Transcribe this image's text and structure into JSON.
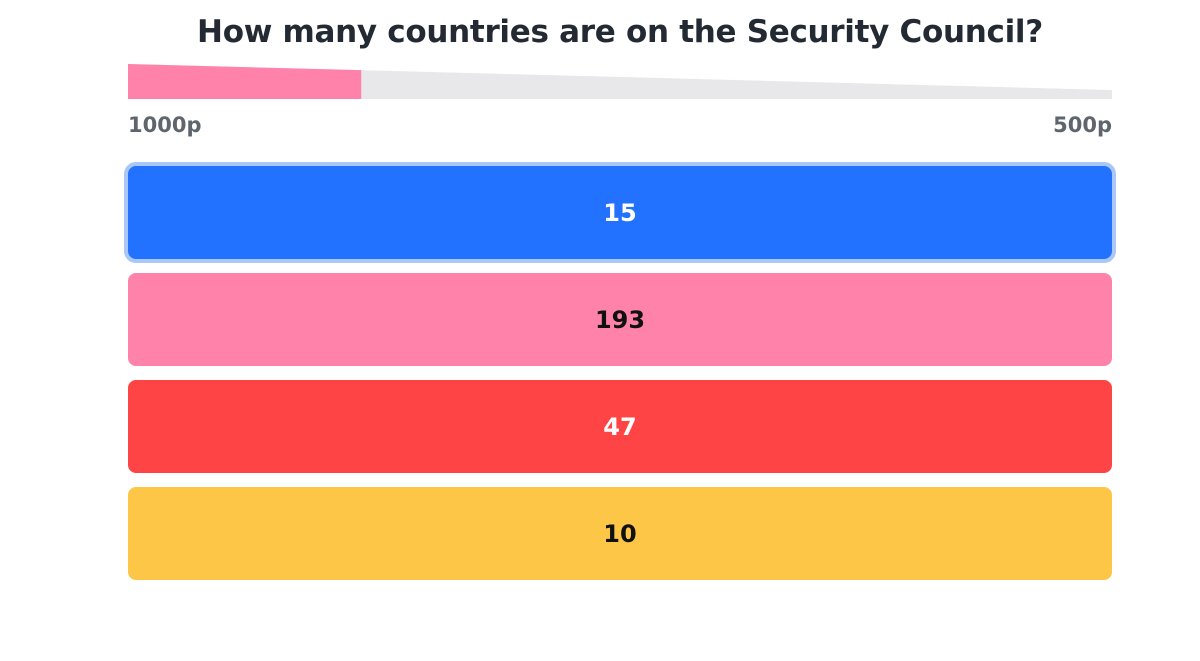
{
  "question": {
    "text": "How many countries are on the Security Council?"
  },
  "timer": {
    "max_points_label": "1000p",
    "min_points_label": "500p",
    "progress_fraction": 0.237,
    "fill_color": "#ff82ab",
    "track_color": "#e8e8eb"
  },
  "answers": [
    {
      "label": "15",
      "color": "#2271ff",
      "text_color": "#ffffff",
      "selected": true
    },
    {
      "label": "193",
      "color": "#ff82ab",
      "text_color": "#111111",
      "selected": false
    },
    {
      "label": "47",
      "color": "#fe4444",
      "text_color": "#ffffff",
      "selected": false
    },
    {
      "label": "10",
      "color": "#fdc646",
      "text_color": "#111111",
      "selected": false
    }
  ]
}
